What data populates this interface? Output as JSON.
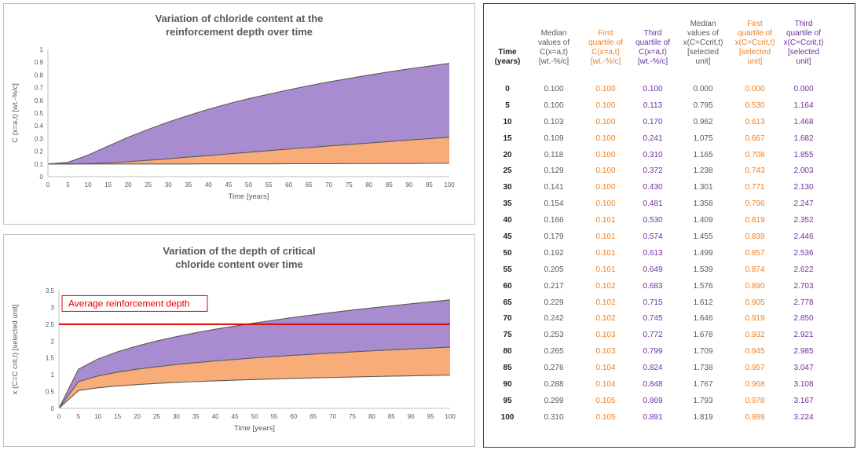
{
  "colors": {
    "purple_fill": "#a88ccf",
    "orange_fill": "#f8ad78",
    "line_dark": "#595959",
    "ref_line": "#e00000",
    "first_quartile_text": "#f07f1e",
    "third_quartile_text": "#7030a0"
  },
  "chart_data": [
    {
      "type": "area",
      "title_lines": [
        "Variation of chloride content at the",
        "reinforcement depth over time"
      ],
      "xlabel": "Time [years]",
      "ylabel": "C (x=a,t) [wt.-%/c]",
      "xlim": [
        0,
        100
      ],
      "ylim": [
        0,
        1
      ],
      "x_ticks": [
        0,
        5,
        10,
        15,
        20,
        25,
        30,
        35,
        40,
        45,
        50,
        55,
        60,
        65,
        70,
        75,
        80,
        85,
        90,
        95,
        100
      ],
      "y_ticks": [
        "0",
        "0.1",
        "0.2",
        "0.3",
        "0.4",
        "0.5",
        "0.6",
        "0.7",
        "0.8",
        "0.9",
        "1"
      ],
      "grid": false,
      "x": [
        0,
        5,
        10,
        15,
        20,
        25,
        30,
        35,
        40,
        45,
        50,
        55,
        60,
        65,
        70,
        75,
        80,
        85,
        90,
        95,
        100
      ],
      "series": [
        {
          "values": [
            0.1,
            0.1,
            0.1,
            0.1,
            0.1,
            0.1,
            0.1,
            0.1,
            0.101,
            0.101,
            0.101,
            0.101,
            0.102,
            0.102,
            0.102,
            0.103,
            0.103,
            0.104,
            0.104,
            0.105,
            0.105
          ]
        },
        {
          "values": [
            0.1,
            0.1,
            0.103,
            0.109,
            0.118,
            0.129,
            0.141,
            0.154,
            0.166,
            0.179,
            0.192,
            0.205,
            0.217,
            0.229,
            0.242,
            0.253,
            0.265,
            0.276,
            0.288,
            0.299,
            0.31
          ]
        },
        {
          "values": [
            0.1,
            0.113,
            0.17,
            0.241,
            0.31,
            0.372,
            0.43,
            0.481,
            0.53,
            0.574,
            0.613,
            0.649,
            0.683,
            0.715,
            0.745,
            0.772,
            0.799,
            0.824,
            0.848,
            0.869,
            0.891
          ]
        }
      ]
    },
    {
      "type": "area",
      "title_lines": [
        "Variation of the depth of critical",
        "chloride content over time"
      ],
      "xlabel": "Time [years]",
      "ylabel": "x (C=C crit,t) [selected unit]",
      "xlim": [
        0,
        100
      ],
      "ylim": [
        0,
        3.5
      ],
      "x_ticks": [
        0,
        5,
        10,
        15,
        20,
        25,
        30,
        35,
        40,
        45,
        50,
        55,
        60,
        65,
        70,
        75,
        80,
        85,
        90,
        95,
        100
      ],
      "y_ticks": [
        "0",
        "0.5",
        "1",
        "1.5",
        "2",
        "2.5",
        "3",
        "3.5"
      ],
      "grid": false,
      "x": [
        0,
        5,
        10,
        15,
        20,
        25,
        30,
        35,
        40,
        45,
        50,
        55,
        60,
        65,
        70,
        75,
        80,
        85,
        90,
        95,
        100
      ],
      "series": [
        {
          "values": [
            0.0,
            0.53,
            0.613,
            0.667,
            0.708,
            0.743,
            0.771,
            0.796,
            0.819,
            0.839,
            0.857,
            0.874,
            0.89,
            0.905,
            0.919,
            0.932,
            0.945,
            0.957,
            0.968,
            0.978,
            0.989
          ]
        },
        {
          "values": [
            0.0,
            0.795,
            0.962,
            1.075,
            1.165,
            1.238,
            1.301,
            1.358,
            1.409,
            1.455,
            1.499,
            1.539,
            1.576,
            1.612,
            1.646,
            1.678,
            1.709,
            1.738,
            1.767,
            1.793,
            1.819
          ]
        },
        {
          "values": [
            0.0,
            1.164,
            1.468,
            1.682,
            1.855,
            2.003,
            2.13,
            2.247,
            2.352,
            2.446,
            2.536,
            2.622,
            2.703,
            2.778,
            2.85,
            2.921,
            2.985,
            3.047,
            3.108,
            3.167,
            3.224
          ]
        }
      ],
      "reference_line": {
        "y": 2.5,
        "label": "Average reinforcement depth"
      }
    }
  ],
  "table": {
    "headers": [
      [
        "Time",
        "(years)"
      ],
      [
        "Median",
        "values of",
        "C(x=a,t)",
        "[wt.-%/c]"
      ],
      [
        "First",
        "quartile of",
        "C(x=a,t)",
        "[wt.-%/c]"
      ],
      [
        "Third",
        "quartile of",
        "C(x=a,t)",
        "[wt.-%/c]"
      ],
      [
        "Median",
        "values of",
        "x(C=Ccrit,t)",
        "[selected",
        "unit]"
      ],
      [
        "First",
        "quartile of",
        "x(C=Ccrit,t)",
        "[selected",
        "unit]"
      ],
      [
        "Third",
        "quartile of",
        "x(C=Ccrit,t)",
        "[selected",
        "unit]"
      ]
    ],
    "rows": [
      [
        "0",
        "0.100",
        "0.100",
        "0.100",
        "0.000",
        "0.000",
        "0.000"
      ],
      [
        "5",
        "0.100",
        "0.100",
        "0.113",
        "0.795",
        "0.530",
        "1.164"
      ],
      [
        "10",
        "0.103",
        "0.100",
        "0.170",
        "0.962",
        "0.613",
        "1.468"
      ],
      [
        "15",
        "0.109",
        "0.100",
        "0.241",
        "1.075",
        "0.667",
        "1.682"
      ],
      [
        "20",
        "0.118",
        "0.100",
        "0.310",
        "1.165",
        "0.708",
        "1.855"
      ],
      [
        "25",
        "0.129",
        "0.100",
        "0.372",
        "1.238",
        "0.743",
        "2.003"
      ],
      [
        "30",
        "0.141",
        "0.100",
        "0.430",
        "1.301",
        "0.771",
        "2.130"
      ],
      [
        "35",
        "0.154",
        "0.100",
        "0.481",
        "1.358",
        "0.796",
        "2.247"
      ],
      [
        "40",
        "0.166",
        "0.101",
        "0.530",
        "1.409",
        "0.819",
        "2.352"
      ],
      [
        "45",
        "0.179",
        "0.101",
        "0.574",
        "1.455",
        "0.839",
        "2.446"
      ],
      [
        "50",
        "0.192",
        "0.101",
        "0.613",
        "1.499",
        "0.857",
        "2.536"
      ],
      [
        "55",
        "0.205",
        "0.101",
        "0.649",
        "1.539",
        "0.874",
        "2.622"
      ],
      [
        "60",
        "0.217",
        "0.102",
        "0.683",
        "1.576",
        "0.890",
        "2.703"
      ],
      [
        "65",
        "0.229",
        "0.102",
        "0.715",
        "1.612",
        "0.905",
        "2.778"
      ],
      [
        "70",
        "0.242",
        "0.102",
        "0.745",
        "1.646",
        "0.919",
        "2.850"
      ],
      [
        "75",
        "0.253",
        "0.103",
        "0.772",
        "1.678",
        "0.932",
        "2.921"
      ],
      [
        "80",
        "0.265",
        "0.103",
        "0.799",
        "1.709",
        "0.945",
        "2.985"
      ],
      [
        "85",
        "0.276",
        "0.104",
        "0.824",
        "1.738",
        "0.957",
        "3.047"
      ],
      [
        "90",
        "0.288",
        "0.104",
        "0.848",
        "1.767",
        "0.968",
        "3.108"
      ],
      [
        "95",
        "0.299",
        "0.105",
        "0.869",
        "1.793",
        "0.978",
        "3.167"
      ],
      [
        "100",
        "0.310",
        "0.105",
        "0.891",
        "1.819",
        "0.989",
        "3.224"
      ]
    ]
  }
}
